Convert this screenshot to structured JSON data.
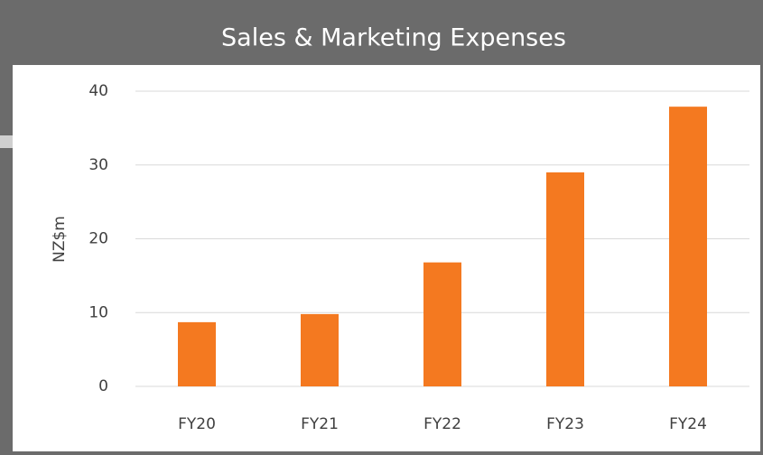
{
  "chart_data": {
    "type": "bar",
    "title": "Sales & Marketing Expenses",
    "ylabel": "NZ$m",
    "categories": [
      "FY20",
      "FY21",
      "FY22",
      "FY23",
      "FY24"
    ],
    "values": [
      8.7,
      9.8,
      16.8,
      29.0,
      37.9
    ],
    "color": "#f47920",
    "ylim": [
      0,
      40
    ],
    "yticks": [
      0,
      10,
      20,
      30,
      40
    ],
    "grid": true
  }
}
